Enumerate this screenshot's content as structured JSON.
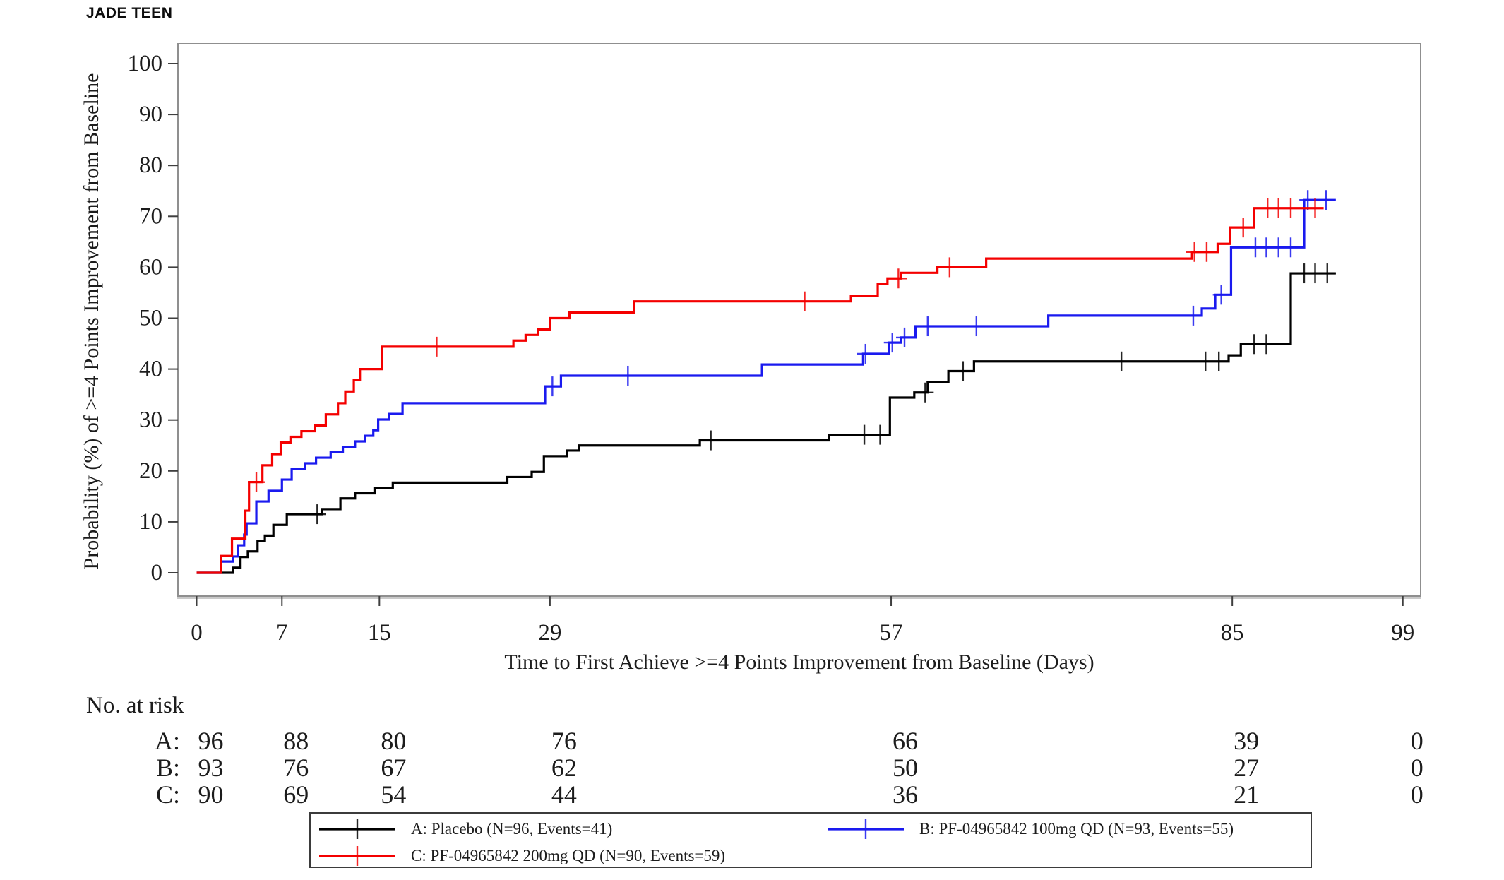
{
  "page": {
    "title": "JADE TEEN"
  },
  "chart_data": {
    "type": "line",
    "variant": "kaplan-meier-step",
    "title": "JADE TEEN",
    "xlabel": "Time to First Achieve >=4 Points Improvement from Baseline (Days)",
    "ylabel": "Probability (%) of >=4 Points Improvement from Baseline",
    "xlim": [
      0,
      99
    ],
    "ylim": [
      0,
      100
    ],
    "x_ticks": [
      0,
      7,
      15,
      29,
      57,
      85,
      99
    ],
    "y_ticks": [
      0,
      10,
      20,
      30,
      40,
      50,
      60,
      70,
      80,
      90,
      100
    ],
    "grid": false,
    "legend_position": "bottom",
    "series": [
      {
        "id": "A",
        "label": "A: Placebo (N=96, Events=41)",
        "n": 96,
        "events": 41,
        "color": "#000000",
        "steps": [
          [
            0,
            0
          ],
          [
            3,
            1
          ],
          [
            3.6,
            3.1
          ],
          [
            4.2,
            4.2
          ],
          [
            5,
            6.2
          ],
          [
            5.6,
            7.3
          ],
          [
            6.3,
            9.4
          ],
          [
            7.4,
            11.5
          ],
          [
            10.3,
            12.5
          ],
          [
            11.8,
            14.6
          ],
          [
            13,
            15.6
          ],
          [
            14.6,
            16.7
          ],
          [
            16.1,
            17.7
          ],
          [
            25.5,
            18.8
          ],
          [
            27.5,
            19.8
          ],
          [
            28.5,
            22.9
          ],
          [
            30.4,
            24
          ],
          [
            31.4,
            25
          ],
          [
            41.3,
            26
          ],
          [
            51.9,
            27.1
          ],
          [
            56.9,
            34.4
          ],
          [
            58.9,
            35.4
          ],
          [
            60,
            37.5
          ],
          [
            61.7,
            39.6
          ],
          [
            63.8,
            41.5
          ],
          [
            84.7,
            42.7
          ],
          [
            85.7,
            44.9
          ],
          [
            89.8,
            58.8
          ],
          [
            93.5,
            58.8
          ]
        ],
        "censors": [
          [
            9.9,
            11.5
          ],
          [
            42.2,
            26
          ],
          [
            54.8,
            27.1
          ],
          [
            56.1,
            27.1
          ],
          [
            59.8,
            35.4
          ],
          [
            62.9,
            39.6
          ],
          [
            75.9,
            41.5
          ],
          [
            82.8,
            41.5
          ],
          [
            83.9,
            41.5
          ],
          [
            86.8,
            44.9
          ],
          [
            87.8,
            44.9
          ],
          [
            90.9,
            58.8
          ],
          [
            91.8,
            58.8
          ],
          [
            92.8,
            58.8
          ]
        ]
      },
      {
        "id": "B",
        "label": "B: PF-04965842 100mg QD (N=93, Events=55)",
        "n": 93,
        "events": 55,
        "color": "#1a1aef",
        "steps": [
          [
            0,
            0
          ],
          [
            2,
            2.2
          ],
          [
            3,
            3.2
          ],
          [
            3.4,
            5.4
          ],
          [
            3.9,
            7.5
          ],
          [
            4.1,
            9.7
          ],
          [
            4.9,
            14
          ],
          [
            5.9,
            16.1
          ],
          [
            7,
            18.3
          ],
          [
            7.8,
            20.4
          ],
          [
            8.9,
            21.5
          ],
          [
            9.8,
            22.6
          ],
          [
            11,
            23.7
          ],
          [
            12,
            24.7
          ],
          [
            13,
            25.8
          ],
          [
            13.8,
            26.9
          ],
          [
            14.5,
            28
          ],
          [
            14.9,
            30.1
          ],
          [
            15.8,
            31.2
          ],
          [
            16.9,
            33.3
          ],
          [
            28.6,
            36.6
          ],
          [
            29.9,
            38.7
          ],
          [
            46.4,
            40.9
          ],
          [
            54.7,
            43
          ],
          [
            56.8,
            45.2
          ],
          [
            57.8,
            46.2
          ],
          [
            59,
            48.4
          ],
          [
            69.9,
            50.5
          ],
          [
            82.5,
            51.9
          ],
          [
            83.6,
            54.6
          ],
          [
            84.9,
            63.9
          ],
          [
            90.9,
            73.2
          ],
          [
            93.5,
            73.2
          ]
        ],
        "censors": [
          [
            29.2,
            36.6
          ],
          [
            35.4,
            38.7
          ],
          [
            54.9,
            43
          ],
          [
            57.1,
            45.2
          ],
          [
            58.1,
            46.2
          ],
          [
            60,
            48.4
          ],
          [
            64,
            48.4
          ],
          [
            81.8,
            50.5
          ],
          [
            84.1,
            54.6
          ],
          [
            86.9,
            63.9
          ],
          [
            87.8,
            63.9
          ],
          [
            88.8,
            63.9
          ],
          [
            89.8,
            63.9
          ],
          [
            91.2,
            73.2
          ],
          [
            92.7,
            73.2
          ]
        ]
      },
      {
        "id": "C",
        "label": "C: PF-04965842 200mg QD (N=90, Events=59)",
        "n": 90,
        "events": 59,
        "color": "#f40000",
        "steps": [
          [
            0,
            0
          ],
          [
            2,
            3.3
          ],
          [
            2.9,
            6.7
          ],
          [
            4,
            12.2
          ],
          [
            4.3,
            17.8
          ],
          [
            5.4,
            21.1
          ],
          [
            6.2,
            23.3
          ],
          [
            6.9,
            25.6
          ],
          [
            7.7,
            26.7
          ],
          [
            8.6,
            27.8
          ],
          [
            9.7,
            28.9
          ],
          [
            10.6,
            31.1
          ],
          [
            11.6,
            33.3
          ],
          [
            12.2,
            35.6
          ],
          [
            12.9,
            37.8
          ],
          [
            13.4,
            40
          ],
          [
            15.2,
            44.4
          ],
          [
            26,
            45.6
          ],
          [
            27,
            46.7
          ],
          [
            28,
            47.8
          ],
          [
            29,
            50
          ],
          [
            30.6,
            51.1
          ],
          [
            35.9,
            53.3
          ],
          [
            53.7,
            54.4
          ],
          [
            55.9,
            56.7
          ],
          [
            56.7,
            57.8
          ],
          [
            57.8,
            58.9
          ],
          [
            60.8,
            60
          ],
          [
            64.8,
            61.7
          ],
          [
            81.7,
            63
          ],
          [
            83.8,
            64.6
          ],
          [
            84.8,
            67.8
          ],
          [
            86.8,
            71.6
          ],
          [
            92.5,
            71.6
          ]
        ],
        "censors": [
          [
            4.9,
            17.8
          ],
          [
            19.7,
            44.4
          ],
          [
            49.9,
            53.3
          ],
          [
            57.6,
            57.8
          ],
          [
            61.8,
            60
          ],
          [
            81.9,
            63
          ],
          [
            82.9,
            63
          ],
          [
            85.9,
            67.8
          ],
          [
            87.9,
            71.6
          ],
          [
            88.8,
            71.6
          ],
          [
            89.8,
            71.6
          ],
          [
            91.8,
            71.6
          ]
        ]
      }
    ],
    "risk_table": {
      "header": "No. at risk",
      "time_points": [
        0,
        7,
        15,
        29,
        57,
        85,
        99
      ],
      "rows": [
        {
          "label": "A:",
          "values": [
            96,
            88,
            80,
            76,
            66,
            39,
            0
          ]
        },
        {
          "label": "B:",
          "values": [
            93,
            76,
            67,
            62,
            50,
            27,
            0
          ]
        },
        {
          "label": "C:",
          "values": [
            90,
            69,
            54,
            44,
            36,
            21,
            0
          ]
        }
      ]
    }
  },
  "colors": {
    "plot_border": "#8f8f8f",
    "tick": "#3f3f3f",
    "text": "#1c1c1c",
    "legend_border": "#3b3b3b"
  }
}
